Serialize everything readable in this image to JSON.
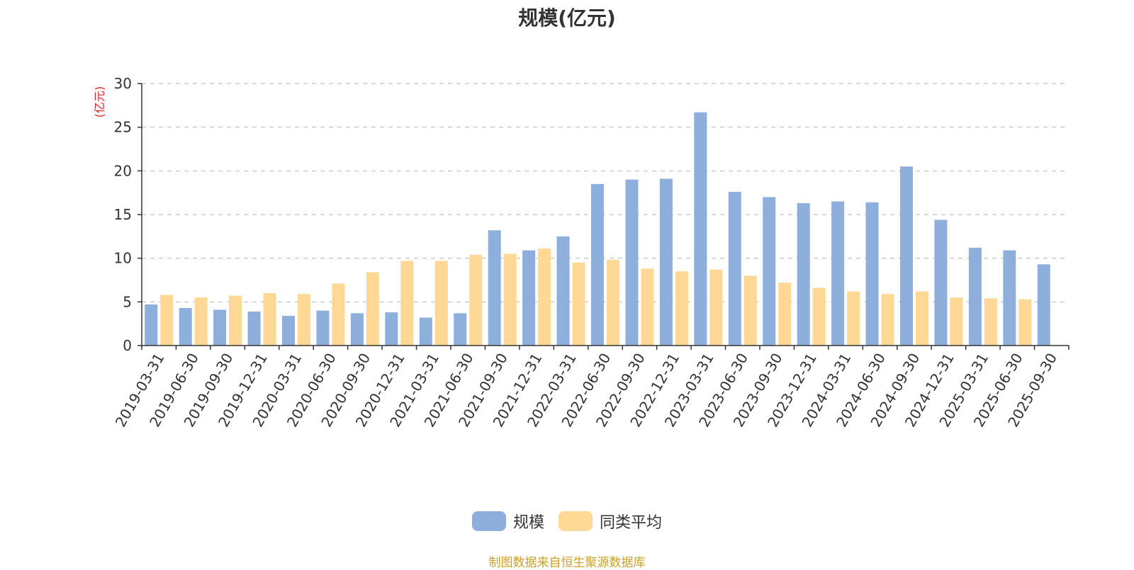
{
  "colors": {
    "scale": "#8eaedb",
    "average": "#fed894",
    "axis": "#333333",
    "grid": "#cccccc",
    "unit": "#e02020",
    "footer": "#c9a227"
  },
  "footer_text": "制图数据来自恒生聚源数据库",
  "chart_data": {
    "type": "bar",
    "title": "规模(亿元)",
    "ylabel": "(亿元)",
    "xlabel": "",
    "ylim": [
      0,
      30
    ],
    "yticks": [
      0,
      5,
      10,
      15,
      20,
      25,
      30
    ],
    "grid": true,
    "legend_position": "bottom",
    "categories": [
      "2019-03-31",
      "2019-06-30",
      "2019-09-30",
      "2019-12-31",
      "2020-03-31",
      "2020-06-30",
      "2020-09-30",
      "2020-12-31",
      "2021-03-31",
      "2021-06-30",
      "2021-09-30",
      "2021-12-31",
      "2022-03-31",
      "2022-06-30",
      "2022-09-30",
      "2022-12-31",
      "2023-03-31",
      "2023-06-30",
      "2023-09-30",
      "2023-12-31",
      "2024-03-31",
      "2024-06-30",
      "2024-09-30",
      "2024-12-31",
      "2025-03-31",
      "2025-06-30",
      "2025-09-30"
    ],
    "series": [
      {
        "name": "规模",
        "values": [
          4.7,
          4.3,
          4.1,
          3.9,
          3.4,
          4.0,
          3.7,
          3.8,
          3.2,
          3.7,
          13.2,
          10.9,
          12.5,
          18.5,
          19.0,
          19.1,
          26.7,
          17.6,
          17.0,
          16.3,
          16.5,
          16.4,
          20.5,
          14.4,
          11.2,
          10.9,
          9.3
        ]
      },
      {
        "name": "同类平均",
        "values": [
          5.8,
          5.5,
          5.7,
          6.0,
          5.9,
          7.1,
          8.4,
          9.7,
          9.7,
          10.4,
          10.5,
          11.1,
          9.5,
          9.8,
          8.8,
          8.5,
          8.7,
          8.0,
          7.2,
          6.6,
          6.2,
          5.9,
          6.2,
          5.5,
          5.4,
          5.3,
          null
        ]
      }
    ]
  }
}
